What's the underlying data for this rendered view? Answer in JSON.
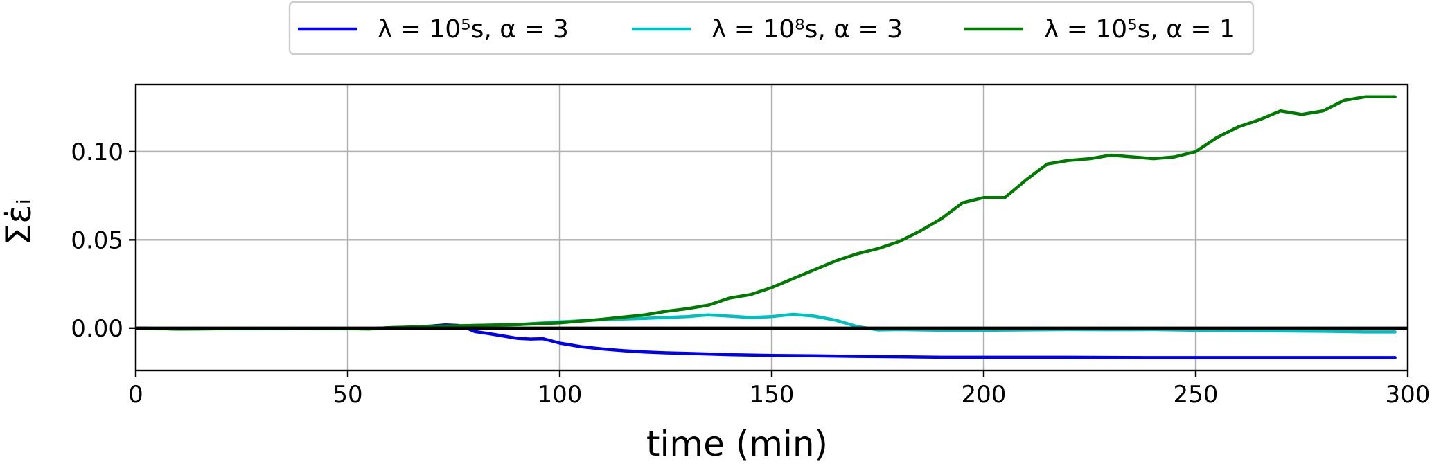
{
  "chart_data": {
    "type": "line",
    "title": "",
    "xlabel": "time (min)",
    "ylabel": "Σε̇ᵢ",
    "xlim": [
      0,
      300
    ],
    "ylim": [
      -0.024,
      0.138
    ],
    "xticks": [
      0,
      50,
      100,
      150,
      200,
      250,
      300
    ],
    "xtick_labels": [
      "0",
      "50",
      "100",
      "150",
      "200",
      "250",
      "300"
    ],
    "yticks": [
      0.0,
      0.05,
      0.1
    ],
    "ytick_labels": [
      "0.00",
      "0.05",
      "0.10"
    ],
    "grid": true,
    "legend_position": "top-center, outside plot",
    "reference_line": {
      "y": 0.0,
      "color": "#000000"
    },
    "series": [
      {
        "name": "λ = 10⁵s, α = 3",
        "color": "#0000ee",
        "x": [
          0,
          10,
          20,
          30,
          40,
          50,
          55,
          60,
          65,
          70,
          73,
          76,
          78,
          80,
          83,
          86,
          90,
          93,
          96,
          100,
          105,
          110,
          115,
          120,
          125,
          130,
          140,
          150,
          160,
          170,
          180,
          190,
          200,
          220,
          240,
          260,
          280,
          297
        ],
        "y": [
          0.0,
          -0.0005,
          -0.0003,
          -0.0002,
          -0.0002,
          -0.0002,
          -0.0003,
          0.0002,
          0.0005,
          0.0012,
          0.0018,
          0.0015,
          0.0,
          -0.002,
          -0.003,
          -0.0042,
          -0.0058,
          -0.0062,
          -0.006,
          -0.0085,
          -0.0105,
          -0.0118,
          -0.0128,
          -0.0135,
          -0.014,
          -0.0143,
          -0.015,
          -0.0155,
          -0.0157,
          -0.016,
          -0.0162,
          -0.0165,
          -0.0165,
          -0.0165,
          -0.0167,
          -0.0167,
          -0.0167,
          -0.0167
        ]
      },
      {
        "name": "λ = 10⁸s, α = 3",
        "color": "#00bfbf",
        "x": [
          0,
          10,
          20,
          30,
          40,
          50,
          55,
          60,
          70,
          80,
          90,
          100,
          110,
          120,
          130,
          135,
          140,
          145,
          150,
          155,
          160,
          165,
          170,
          175,
          180,
          190,
          200,
          210,
          220,
          230,
          240,
          250,
          260,
          270,
          280,
          290,
          297
        ],
        "y": [
          0.0,
          -0.0005,
          -0.0004,
          -0.0003,
          -0.0002,
          -0.0003,
          -0.0004,
          0.0002,
          0.0008,
          0.0015,
          0.002,
          0.0035,
          0.0048,
          0.0055,
          0.0065,
          0.0075,
          0.0068,
          0.006,
          0.0065,
          0.0078,
          0.0068,
          0.0045,
          0.001,
          -0.001,
          -0.0008,
          -0.0012,
          -0.0012,
          -0.001,
          -0.0008,
          -0.0009,
          -0.0008,
          -0.0012,
          -0.0014,
          -0.0016,
          -0.0018,
          -0.0022,
          -0.0022
        ]
      },
      {
        "name": "λ = 10⁵s, α = 1",
        "color": "#007a00",
        "x": [
          0,
          10,
          20,
          30,
          40,
          50,
          55,
          60,
          70,
          80,
          90,
          100,
          110,
          120,
          125,
          130,
          135,
          140,
          145,
          150,
          155,
          160,
          165,
          170,
          175,
          180,
          185,
          190,
          195,
          200,
          205,
          210,
          215,
          220,
          225,
          230,
          235,
          240,
          245,
          250,
          255,
          260,
          265,
          270,
          275,
          280,
          285,
          290,
          297
        ],
        "y": [
          0.0,
          -0.0006,
          -0.0004,
          -0.0002,
          -0.0002,
          -0.0003,
          -0.0005,
          0.0003,
          0.001,
          0.0015,
          0.002,
          0.003,
          0.005,
          0.0075,
          0.0095,
          0.011,
          0.013,
          0.017,
          0.019,
          0.023,
          0.028,
          0.033,
          0.038,
          0.042,
          0.045,
          0.049,
          0.055,
          0.062,
          0.071,
          0.074,
          0.074,
          0.084,
          0.093,
          0.095,
          0.096,
          0.098,
          0.097,
          0.096,
          0.097,
          0.1,
          0.108,
          0.114,
          0.118,
          0.123,
          0.121,
          0.123,
          0.129,
          0.131,
          0.131
        ]
      }
    ]
  }
}
